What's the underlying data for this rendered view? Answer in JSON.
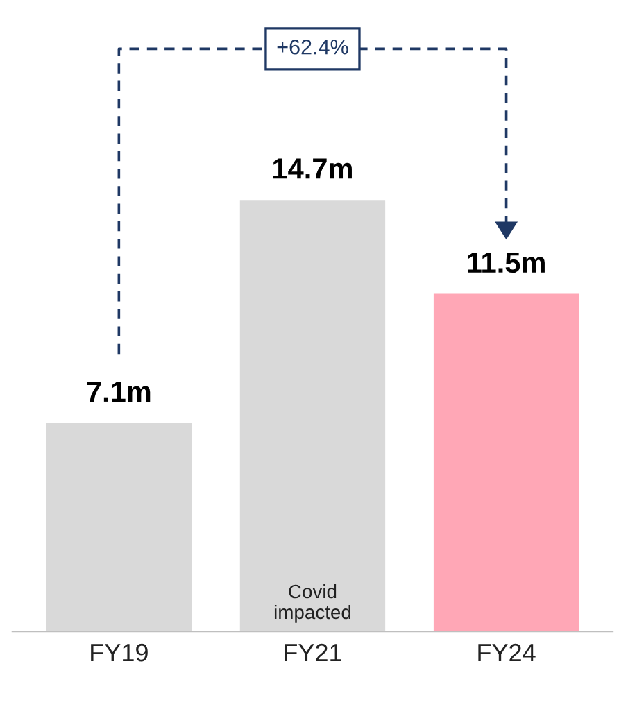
{
  "chart_data": {
    "type": "bar",
    "categories": [
      "FY19",
      "FY21",
      "FY24"
    ],
    "values": [
      7.1,
      14.7,
      11.5
    ],
    "value_labels": [
      "7.1m",
      "14.7m",
      "11.5m"
    ],
    "colors": [
      "#d9d9d9",
      "#d9d9d9",
      "#ffa7b6"
    ],
    "annotations": [
      "+62.4%",
      {
        "text": "Covid\nimpacted",
        "x": "FY21",
        "y": 0
      }
    ],
    "grid": false,
    "legend": false
  }
}
